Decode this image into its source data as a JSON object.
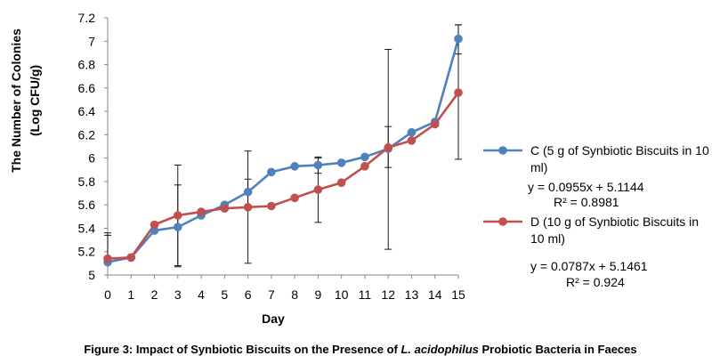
{
  "chart_data": {
    "type": "line",
    "title": "",
    "xlabel": "Day",
    "ylabel_line1": "The Number of Colonies",
    "ylabel_line2": "(Log CFU/g)",
    "x": [
      0,
      1,
      2,
      3,
      4,
      5,
      6,
      7,
      8,
      9,
      10,
      11,
      12,
      13,
      14,
      15
    ],
    "xlim": [
      0,
      15
    ],
    "ylim": [
      5,
      7.2
    ],
    "y_ticks": [
      "5",
      "5.2",
      "5.4",
      "5.6",
      "5.8",
      "6",
      "6.2",
      "6.4",
      "6.6",
      "6.8",
      "7",
      "7.2"
    ],
    "x_ticks": [
      "0",
      "1",
      "2",
      "3",
      "4",
      "5",
      "6",
      "7",
      "8",
      "9",
      "10",
      "11",
      "12",
      "13",
      "14",
      "15"
    ],
    "grid": false,
    "legend_position": "right",
    "series": [
      {
        "name_line1": "C (5 g of Synbiotic Biscuits in 10",
        "name_line2": "ml)",
        "color": "#4F81BD",
        "values": [
          5.11,
          5.15,
          5.38,
          5.41,
          5.51,
          5.6,
          5.71,
          5.88,
          5.93,
          5.94,
          5.96,
          6.01,
          6.08,
          6.22,
          6.31,
          7.02
        ],
        "error_bars": [
          {
            "x": 0,
            "low": 5.11,
            "high": 5.34
          },
          {
            "x": 3,
            "low": 5.08,
            "high": 5.77
          },
          {
            "x": 6,
            "low": 5.58,
            "high": 5.82
          },
          {
            "x": 9,
            "low": 5.87,
            "high": 6.01
          },
          {
            "x": 12,
            "low": 5.92,
            "high": 6.27
          },
          {
            "x": 15,
            "low": 6.89,
            "high": 7.14
          }
        ],
        "equation": "y = 0.0955x + 5.1144",
        "r2": "R² = 0.8981"
      },
      {
        "name_line1": "D (10 g of Synbiotic Biscuits in",
        "name_line2": "10 ml)",
        "color": "#C0504D",
        "values": [
          5.14,
          5.15,
          5.43,
          5.51,
          5.54,
          5.57,
          5.58,
          5.59,
          5.66,
          5.73,
          5.79,
          5.93,
          6.09,
          6.15,
          6.29,
          6.56
        ],
        "error_bars": [
          {
            "x": 0,
            "low": 5.12,
            "high": 5.36
          },
          {
            "x": 3,
            "low": 5.07,
            "high": 5.94
          },
          {
            "x": 6,
            "low": 5.1,
            "high": 6.06
          },
          {
            "x": 9,
            "low": 5.45,
            "high": 6.0
          },
          {
            "x": 12,
            "low": 5.22,
            "high": 6.93
          },
          {
            "x": 15,
            "low": 5.99,
            "high": 7.14
          }
        ],
        "equation": "y = 0.0787x + 5.1461",
        "r2": "R² = 0.924"
      }
    ]
  },
  "caption": {
    "prefix": "Figure 3: Impact of Synbiotic Biscuits on the Presence of ",
    "species": "L. acidophilus",
    "suffix": " Probiotic Bacteria in Faeces"
  }
}
